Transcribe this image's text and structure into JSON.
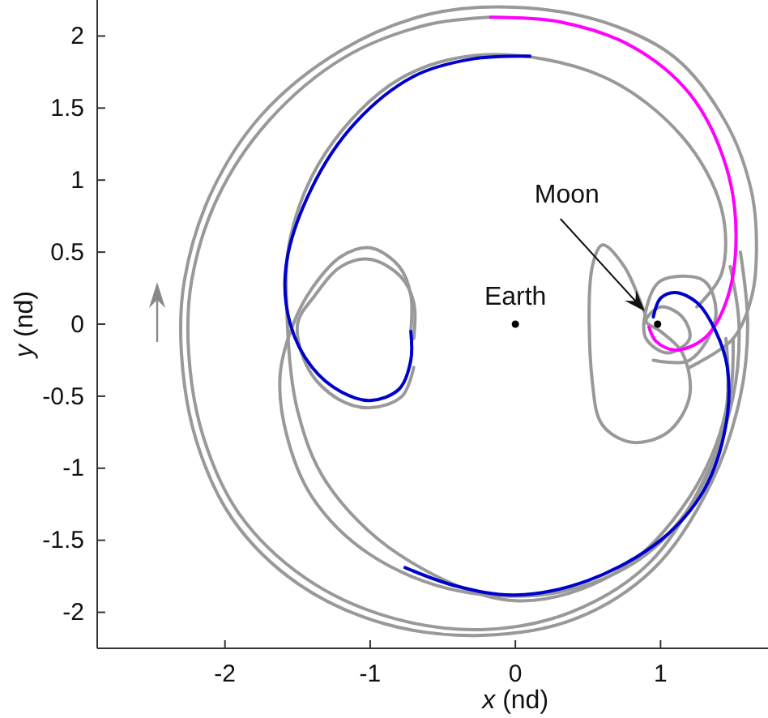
{
  "chart_data": {
    "type": "line",
    "xlabel": "x (nd)",
    "ylabel": "y (nd)",
    "xlim": [
      -2.88,
      1.74
    ],
    "ylim": [
      -2.25,
      2.25
    ],
    "xticks": [
      -2,
      -1,
      0,
      1
    ],
    "yticks": [
      -2,
      -1.5,
      -1,
      -0.5,
      0,
      0.5,
      1,
      1.5,
      2
    ],
    "marker": "none",
    "line_style": "solid",
    "grid": false,
    "annotations": [
      {
        "text": "Earth",
        "x": 0,
        "y": 0
      },
      "Moon"
    ],
    "series": [
      {
        "color": "#999999",
        "x": [
          1.2,
          1.5,
          1.63,
          1.66,
          1.62,
          1.45,
          1.1,
          0.6,
          0,
          -0.6,
          -1.2,
          -1.75,
          -2.1,
          -2.28,
          -2.3,
          -2.2,
          -1.95,
          -1.5,
          -0.9,
          -0.23,
          0.4,
          0.95,
          1.35,
          1.55,
          1.6,
          1.55
        ],
        "values": [
          -0.3,
          -0.1,
          0.2,
          0.6,
          0.95,
          1.4,
          1.85,
          2.1,
          2.2,
          2.15,
          1.9,
          1.45,
          0.9,
          0.3,
          -0.2,
          -0.8,
          -1.35,
          -1.8,
          -2.08,
          -2.16,
          -2.05,
          -1.7,
          -1.1,
          -0.5,
          0,
          0.5
        ]
      },
      {
        "color": "#999999",
        "x": [
          -0.17,
          -0.6,
          -1.18,
          -1.7,
          -2.05,
          -2.23,
          -2.25,
          -2.15,
          -1.9,
          -1.45,
          -0.88,
          -0.23,
          0.38,
          0.92,
          1.3,
          1.5,
          1.54,
          1.48
        ],
        "values": [
          2.13,
          2.08,
          1.85,
          1.41,
          0.88,
          0.3,
          -0.2,
          -0.78,
          -1.32,
          -1.76,
          -2.03,
          -2.12,
          -2.0,
          -1.66,
          -1.08,
          -0.5,
          0,
          0.4
        ]
      },
      {
        "color": "#999999",
        "x": [
          1.25,
          1.42,
          1.42,
          1.15,
          0.6,
          -0.2,
          -0.8,
          -1.3,
          -1.55,
          -1.57,
          -1.5,
          -1.3,
          -0.8,
          0,
          0.7,
          1.2,
          1.45,
          1.45
        ],
        "values": [
          0.12,
          0.35,
          0.8,
          1.3,
          1.72,
          1.87,
          1.7,
          1.2,
          0.6,
          0,
          -0.6,
          -1.1,
          -1.6,
          -1.92,
          -1.72,
          -1.2,
          -0.6,
          -0.1
        ]
      },
      {
        "color": "#999999",
        "x": [
          -0.72,
          -0.72,
          -0.8,
          -1.0,
          -1.2,
          -1.4,
          -1.53,
          -1.62,
          -1.58,
          -1.4,
          -1.0,
          -0.4,
          0.3,
          0.9,
          1.3,
          1.48,
          1.5
        ],
        "values": [
          -0.05,
          0.2,
          0.4,
          0.53,
          0.47,
          0.25,
          0,
          -0.35,
          -0.75,
          -1.2,
          -1.6,
          -1.85,
          -1.86,
          -1.6,
          -1.1,
          -0.5,
          -0.1
        ]
      },
      {
        "color": "#999999",
        "x": [
          -0.7,
          -0.7,
          -0.79,
          -1.0,
          -1.2,
          -1.38,
          -1.5,
          -1.42,
          -1.22,
          -1.0,
          -0.78,
          -0.7
        ],
        "values": [
          -0.1,
          0.15,
          0.33,
          0.45,
          0.4,
          0.2,
          0,
          -0.32,
          -0.52,
          -0.58,
          -0.5,
          -0.3
        ]
      },
      {
        "color": "#999999",
        "x": [
          0.9,
          0.75,
          0.6,
          0.53,
          0.53,
          0.6,
          0.8,
          1.05,
          1.2,
          1.15,
          1.0,
          0.9,
          1.0,
          1.15,
          1.2,
          1.05,
          0.9,
          0.9,
          1.0,
          1.3,
          1.38,
          1.2,
          0.95
        ],
        "values": [
          0.05,
          0.4,
          0.55,
          0.4,
          -0.4,
          -0.7,
          -0.82,
          -0.75,
          -0.5,
          -0.2,
          -0.05,
          0.02,
          0.12,
          0.05,
          -0.1,
          -0.2,
          -0.1,
          0.1,
          0.3,
          0.3,
          0.05,
          -0.25,
          -0.25
        ]
      },
      {
        "color": "#ff00ff",
        "x": [
          -0.17,
          0.3,
          0.8,
          1.2,
          1.45,
          1.52,
          1.45,
          1.3,
          1.1,
          0.97,
          0.92
        ],
        "values": [
          2.13,
          2.1,
          1.93,
          1.6,
          1.1,
          0.6,
          0.15,
          -0.1,
          -0.18,
          -0.12,
          -0.02
        ]
      },
      {
        "color": "#0000cc",
        "x": [
          0.1,
          -0.3,
          -0.7,
          -1.1,
          -1.4,
          -1.58,
          -1.55,
          -1.4,
          -1.2,
          -1.0,
          -0.8,
          -0.72,
          -0.72
        ],
        "values": [
          1.86,
          1.84,
          1.72,
          1.4,
          0.95,
          0.4,
          0,
          -0.3,
          -0.47,
          -0.53,
          -0.45,
          -0.25,
          -0.05
        ]
      },
      {
        "color": "#0000cc",
        "x": [
          0.95,
          1.0,
          1.1,
          1.25,
          1.38,
          1.46,
          1.45,
          1.3,
          1.0,
          0.5,
          0,
          -0.4,
          -0.76
        ],
        "values": [
          0.05,
          0.18,
          0.22,
          0.15,
          -0.05,
          -0.3,
          -0.7,
          -1.15,
          -1.5,
          -1.78,
          -1.88,
          -1.82,
          -1.69
        ]
      },
      {
        "type": "scatter",
        "color": "#000000",
        "marker": "circle",
        "x": [
          0,
          0.98
        ],
        "values": [
          0,
          0
        ]
      }
    ]
  }
}
